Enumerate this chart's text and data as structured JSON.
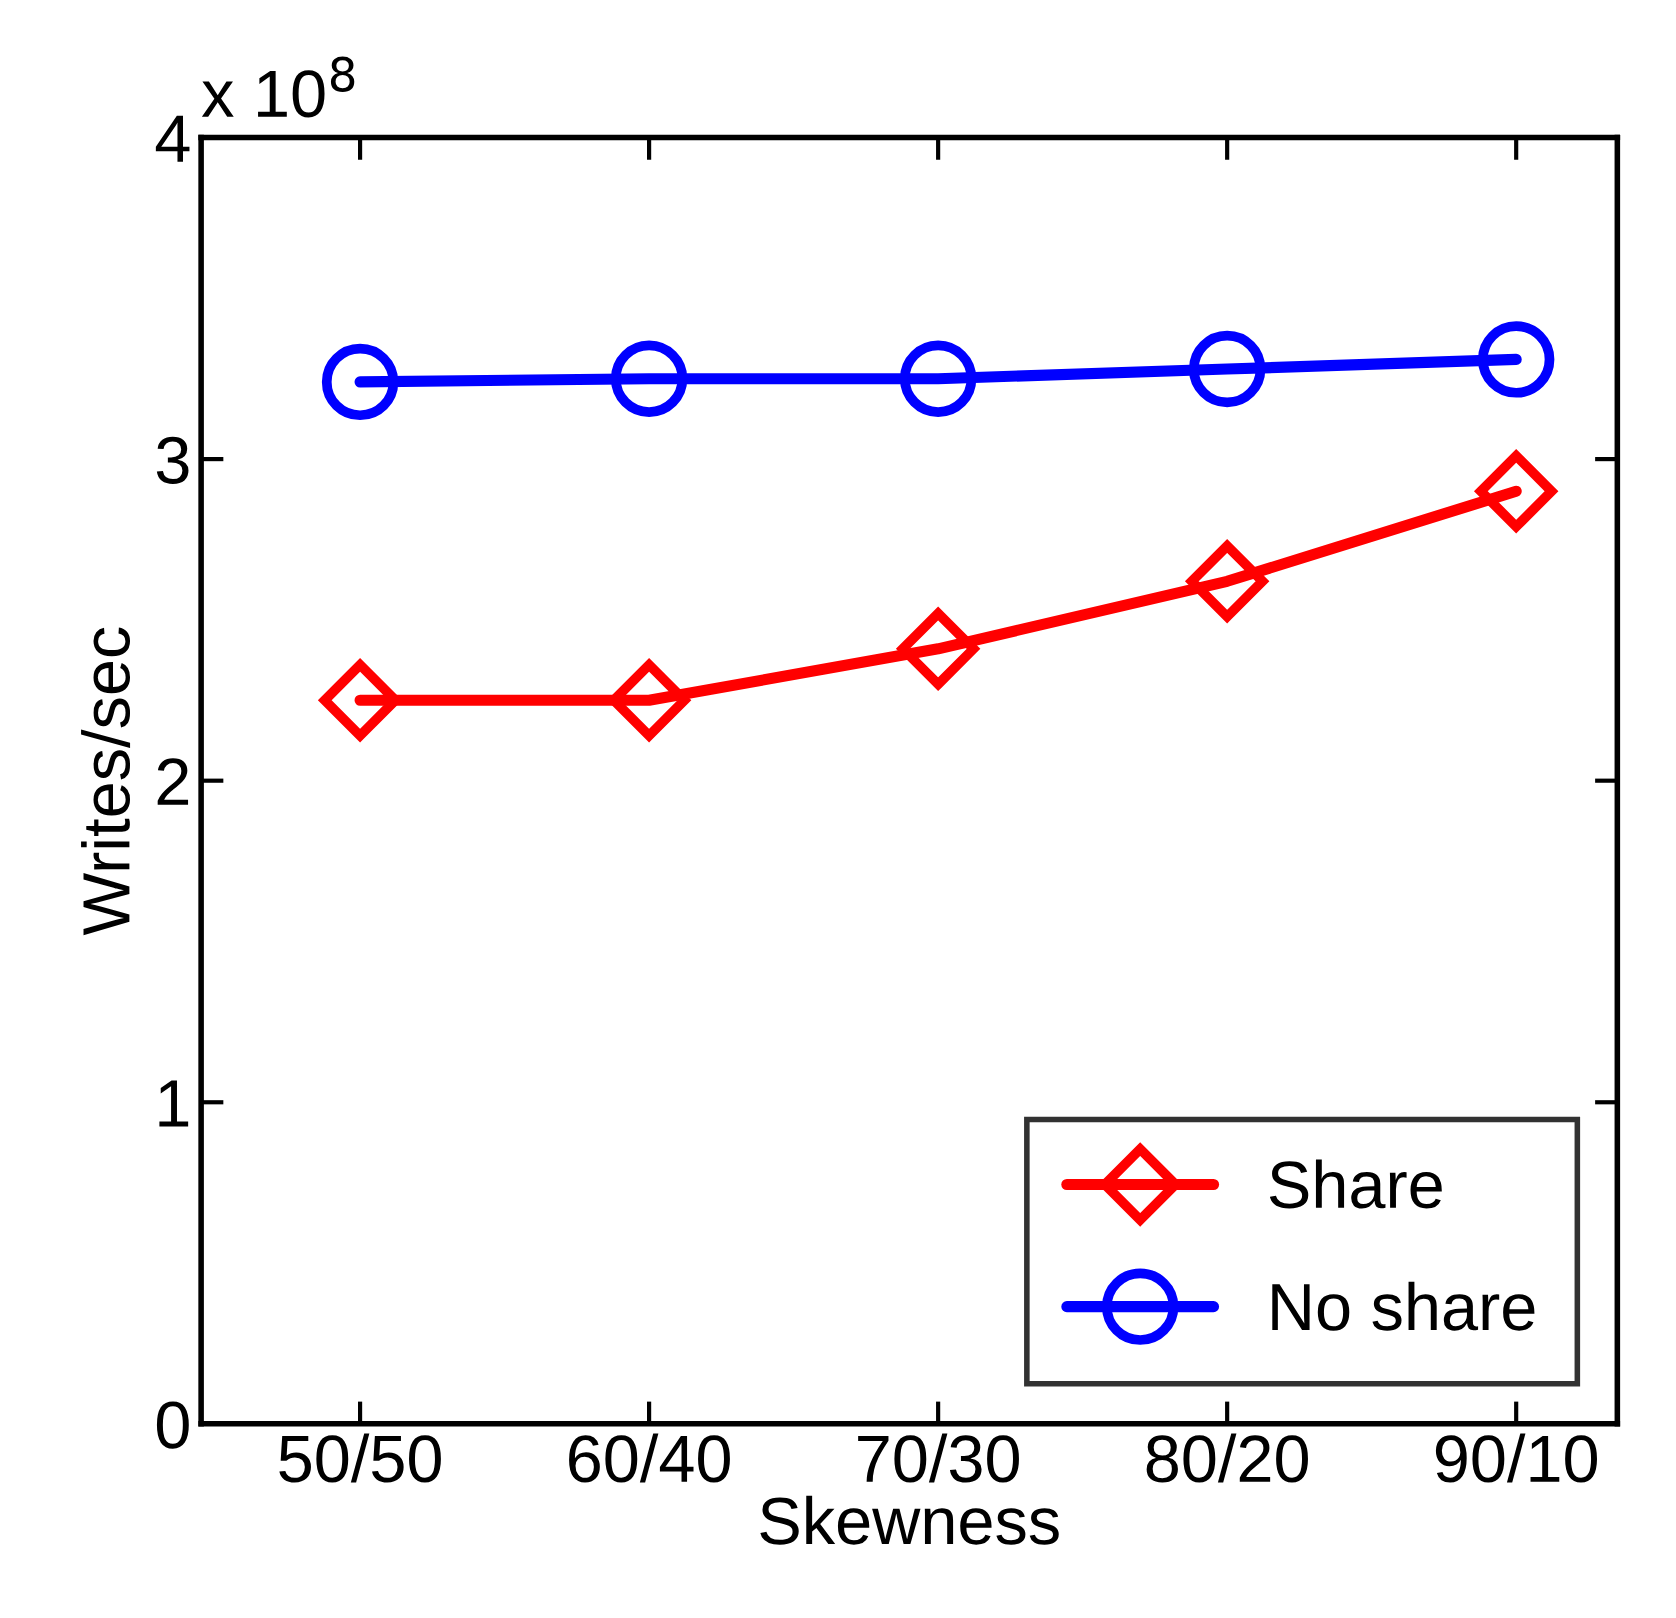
{
  "chart_data": {
    "type": "line",
    "xlabel": "Skewness",
    "ylabel": "Writes/sec",
    "annotations": [
      "x 10$^{8}$"
    ],
    "categories": [
      "50/50",
      "60/40",
      "70/30",
      "80/20",
      "90/10"
    ],
    "series": [
      {
        "name": "Share",
        "color": "#ff0000",
        "marker": "diamond",
        "values": [
          2.25,
          2.25,
          2.41,
          2.62,
          2.9
        ]
      },
      {
        "name": "No share",
        "color": "#0000ff",
        "marker": "circle",
        "values": [
          3.24,
          3.25,
          3.25,
          3.28,
          3.31
        ]
      }
    ],
    "ylim": [
      0,
      4
    ],
    "yticks": [
      0,
      1,
      2,
      3,
      4
    ],
    "grid": false,
    "legend": "bottom right",
    "line_style": "solid"
  }
}
